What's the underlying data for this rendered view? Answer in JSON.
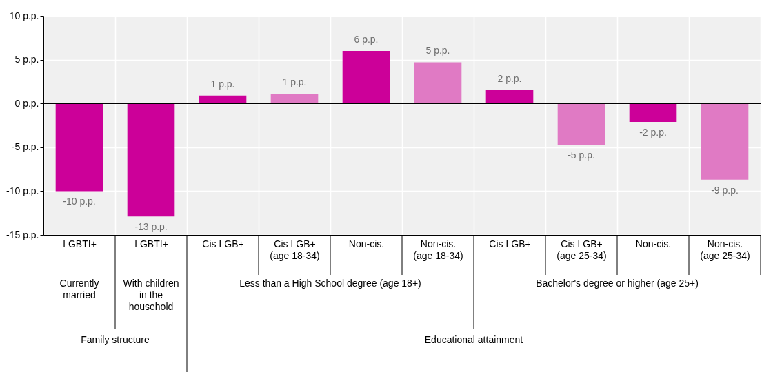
{
  "chart_data": {
    "type": "bar",
    "categories": [
      "LGBTI+",
      "LGBTI+",
      "Cis LGB+",
      "Cis LGB+ (age 18-34)",
      "Non-cis.",
      "Non-cis. (age 18-34)",
      "Cis LGB+",
      "Cis LGB+ (age 25-34)",
      "Non-cis.",
      "Non-cis. (age 25-34)"
    ],
    "values": [
      -10.0,
      -12.9,
      0.9,
      1.1,
      6.0,
      4.7,
      1.5,
      -4.7,
      -2.1,
      -8.7
    ],
    "colors": [
      "#cc0099",
      "#cc0099",
      "#cc0099",
      "#e07ac4",
      "#cc0099",
      "#e07ac4",
      "#cc0099",
      "#e07ac4",
      "#cc0099",
      "#e07ac4"
    ],
    "value_labels": [
      "-10 p.p.",
      "-13 p.p.",
      "1 p.p.",
      "1 p.p.",
      "6 p.p.",
      "5 p.p.",
      "2 p.p.",
      "-5 p.p.",
      "-2 p.p.",
      "-9 p.p."
    ],
    "ylim": [
      -15,
      10
    ],
    "yticks": [
      {
        "value": -15,
        "label": "-15 p.p."
      },
      {
        "value": -10,
        "label": "-10 p.p."
      },
      {
        "value": -5,
        "label": "-5 p.p."
      },
      {
        "value": 0,
        "label": "0 p.p."
      },
      {
        "value": 5,
        "label": "5 p.p."
      },
      {
        "value": 10,
        "label": "10 p.p."
      }
    ],
    "grid": true,
    "ref_lines": [
      {
        "axis": "y",
        "value": 0,
        "color": "#000000"
      }
    ],
    "annotations": [
      "Currently married",
      "With children in the household",
      "Less than a High School degree (age 18+)",
      "Bachelor's degree or higher (age 25+)",
      "Family structure",
      "Educational attainment"
    ]
  }
}
